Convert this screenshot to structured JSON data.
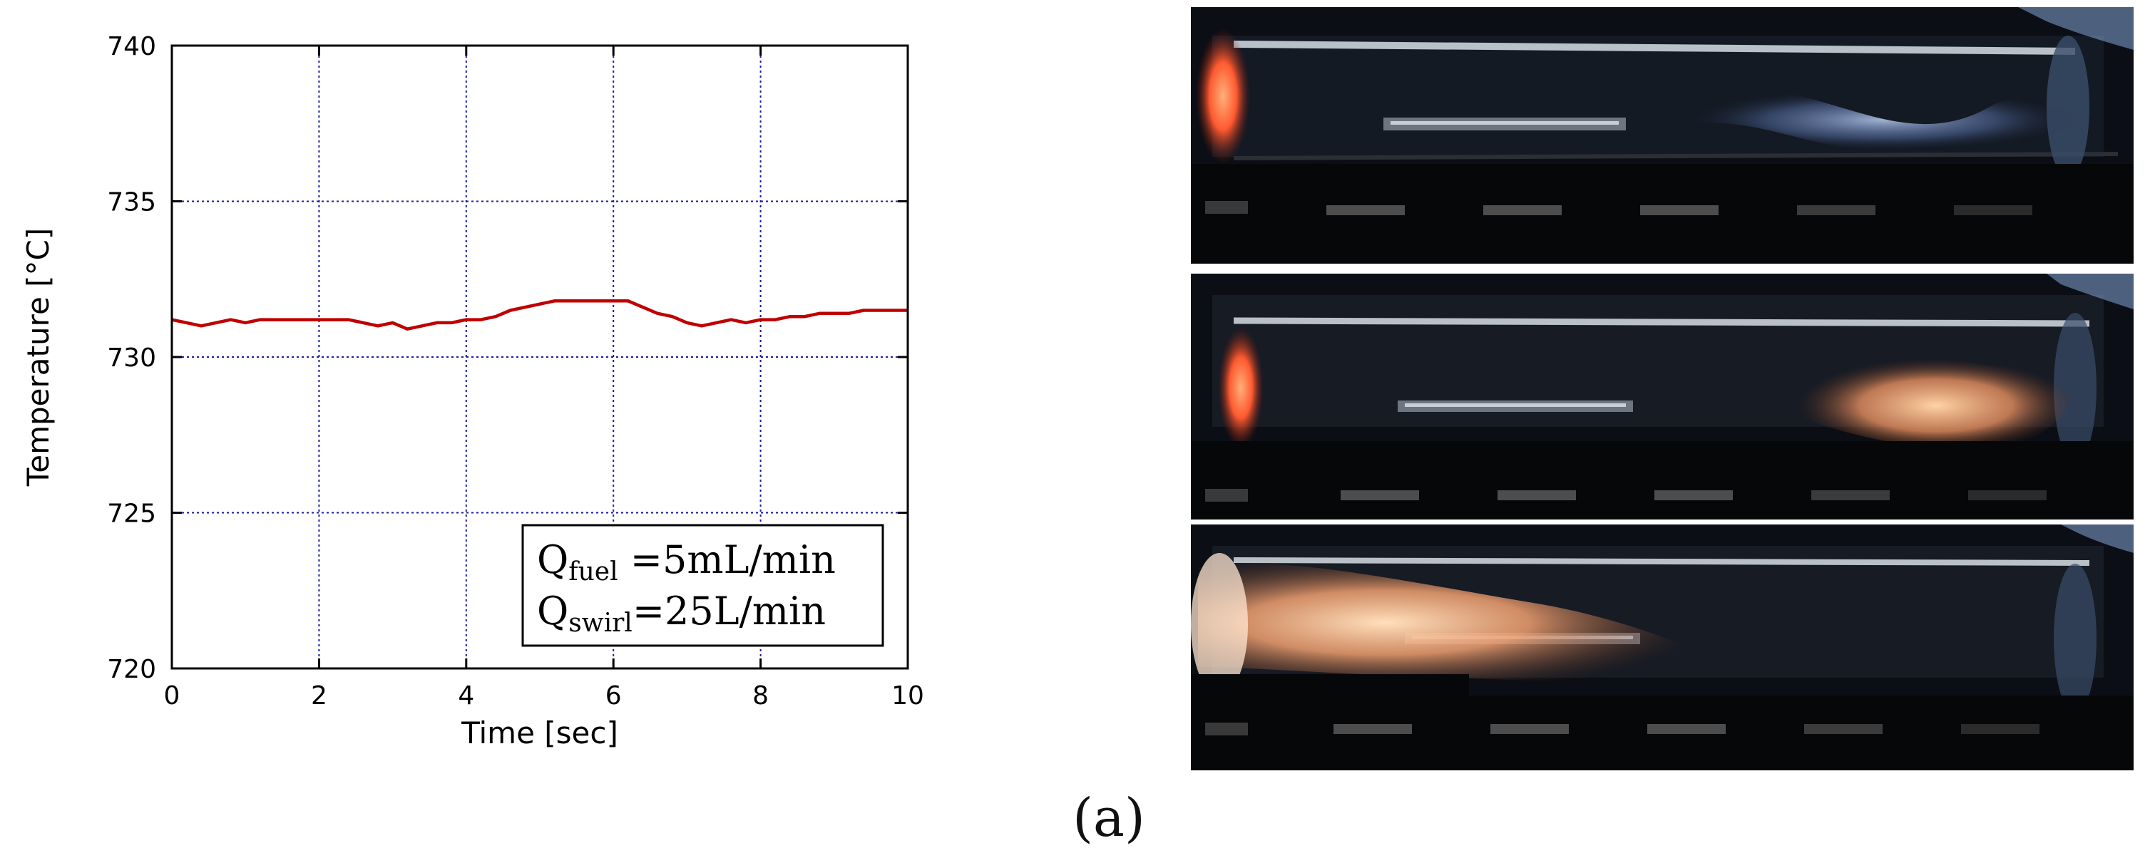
{
  "figure": {
    "panel_label": "(a)"
  },
  "chart_data": {
    "type": "line",
    "title": "",
    "xlabel": "Time  [sec]",
    "ylabel": "Temperature  [°C]",
    "xlim": [
      0,
      10
    ],
    "ylim": [
      720,
      740
    ],
    "xticks": [
      0,
      2,
      4,
      6,
      8,
      10
    ],
    "yticks": [
      720,
      725,
      730,
      735,
      740
    ],
    "grid": true,
    "grid_style": "dotted",
    "series": [
      {
        "name": "",
        "color": "#c00000",
        "x": [
          0.0,
          0.2,
          0.4,
          0.6,
          0.8,
          1.0,
          1.2,
          1.4,
          1.6,
          1.8,
          2.0,
          2.2,
          2.4,
          2.6,
          2.8,
          3.0,
          3.2,
          3.4,
          3.6,
          3.8,
          4.0,
          4.2,
          4.4,
          4.6,
          4.8,
          5.0,
          5.2,
          5.4,
          5.6,
          5.8,
          6.0,
          6.2,
          6.4,
          6.6,
          6.8,
          7.0,
          7.2,
          7.4,
          7.6,
          7.8,
          8.0,
          8.2,
          8.4,
          8.6,
          8.8,
          9.0,
          9.2,
          9.4,
          9.6,
          9.8,
          10.0
        ],
        "values": [
          731.2,
          731.1,
          731.0,
          731.1,
          731.2,
          731.1,
          731.2,
          731.2,
          731.2,
          731.2,
          731.2,
          731.2,
          731.2,
          731.1,
          731.0,
          731.1,
          730.9,
          731.0,
          731.1,
          731.1,
          731.2,
          731.2,
          731.3,
          731.5,
          731.6,
          731.7,
          731.8,
          731.8,
          731.8,
          731.8,
          731.8,
          731.8,
          731.6,
          731.4,
          731.3,
          731.1,
          731.0,
          731.1,
          731.2,
          731.1,
          731.2,
          731.2,
          731.3,
          731.3,
          731.4,
          731.4,
          731.4,
          731.5,
          731.5,
          731.5,
          731.5
        ]
      }
    ],
    "annotation": {
      "lines": [
        {
          "q": "Q",
          "sub": "fuel",
          "rest": " =5mL/min"
        },
        {
          "q": "Q",
          "sub": "swirl",
          "rest": "=25L/min"
        }
      ],
      "placement": "bottom-right"
    }
  },
  "photos": [
    {
      "name": "photo-1",
      "flame": "blue-outlet"
    },
    {
      "name": "photo-2",
      "flame": "orange-outlet"
    },
    {
      "name": "photo-3",
      "flame": "orange-inlet"
    }
  ],
  "colors": {
    "blue_flame": "#9fb8e6",
    "orange_flame": "#ffc28a",
    "glow": "#ff6b3a"
  }
}
